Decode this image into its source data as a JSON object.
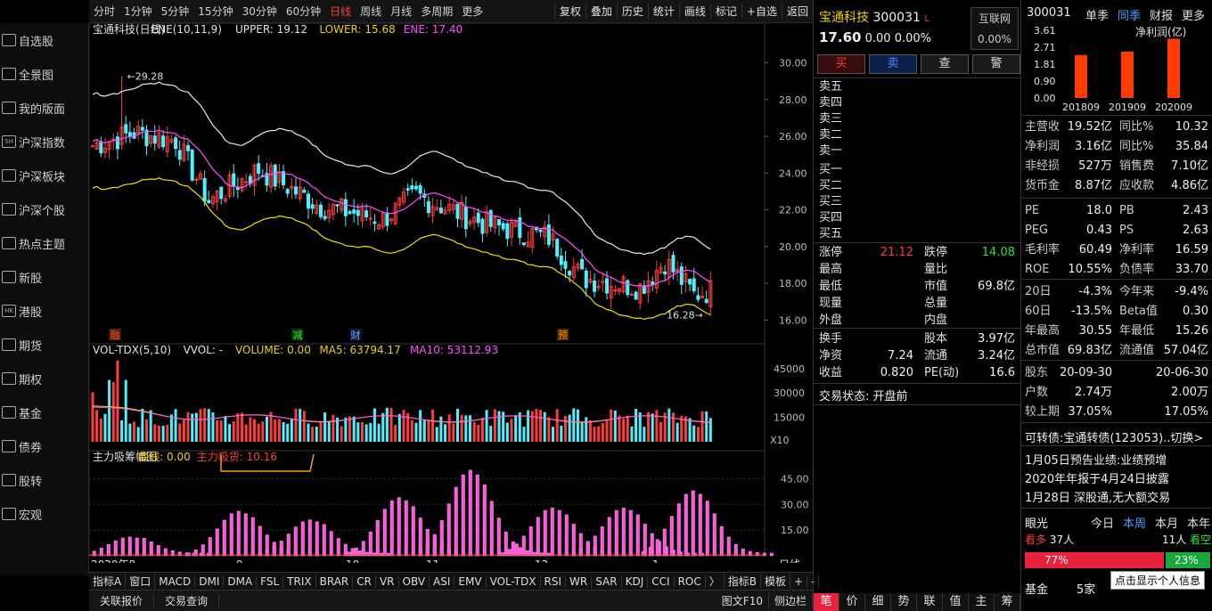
{
  "nav": [
    "自选股",
    "全景图",
    "我的版面",
    "沪深指数",
    "沪深板块",
    "沪深个股",
    "热点主题",
    "新股",
    "港股",
    "期货",
    "期权",
    "基金",
    "债券",
    "股转",
    "宏观"
  ],
  "nav_icons": [
    "star-icon",
    "panorama-icon",
    "layout-icon",
    "sh-index-icon",
    "sector-icon",
    "stock-icon",
    "hot-topic-icon",
    "new-stock-icon",
    "hk-icon",
    "futures-icon",
    "options-icon",
    "fund-icon",
    "bond-icon",
    "transfer-icon",
    "macro-icon"
  ],
  "nav_icon_text": [
    "",
    "",
    "",
    "SH",
    "",
    "",
    "",
    "",
    "HK",
    "",
    "",
    "",
    "",
    "",
    ""
  ],
  "toolbar": {
    "periods": [
      "分时",
      "1分钟",
      "5分钟",
      "15分钟",
      "30分钟",
      "60分钟",
      "日线",
      "周线",
      "月线",
      "多周期",
      "更多"
    ],
    "buttons": [
      "复权",
      "叠加",
      "历史",
      "统计",
      "画线",
      "标记",
      "+自选",
      "返回"
    ]
  },
  "chart": {
    "title": "宝通科技(日线)",
    "indicator": "ENE(10,11,9)",
    "upper": "UPPER: 19.12",
    "lower": "LOWER: 15.68",
    "ene": "ENE: 17.40",
    "price_ticks": [
      "30.00",
      "28.00",
      "26.00",
      "24.00",
      "22.00",
      "20.00",
      "18.00",
      "16.00"
    ],
    "high_label": "29.28",
    "low_label": "16.28",
    "markers": [
      "融",
      "减",
      "财",
      "预"
    ],
    "vol_legend": {
      "name": "VOL-TDX(5,10)",
      "vvol": "VVOL: -",
      "volume": "VOLUME: 0.00",
      "ma5": "MA5: 63794.17",
      "ma10": "MA10: 53112.93"
    },
    "vol_ticks": [
      "45000",
      "30000",
      "15000"
    ],
    "vol_unit": "X10",
    "chip_legend": {
      "name": "主力吸筹幅图",
      "base": "底线: 0.00",
      "chip": "主力吸货: 10.16"
    },
    "chip_ticks": [
      "45.00",
      "30.00",
      "15.00"
    ],
    "months": [
      "2020年8",
      "9",
      "10",
      "11",
      "12",
      "1"
    ],
    "period_btn": "日线"
  },
  "chart_data": {
    "type": "line",
    "y_price_range": [
      15.0,
      31.0
    ],
    "series": [
      {
        "name": "UPPER",
        "end_value": 19.12
      },
      {
        "name": "LOWER",
        "end_value": 15.68
      },
      {
        "name": "ENE",
        "end_value": 17.4
      }
    ],
    "last_close": 17.6,
    "high": 29.28,
    "low": 16.28
  },
  "bottom_tabs": [
    "指标A",
    "窗口",
    "MACD",
    "DMI",
    "DMA",
    "FSL",
    "TRIX",
    "BRAR",
    "CR",
    "VR",
    "OBV",
    "ASI",
    "EMV",
    "VOL-TDX",
    "RSI",
    "WR",
    "SAR",
    "KDJ",
    "CCI",
    "ROC",
    "〉",
    "指标B",
    "模板",
    "+",
    "-"
  ],
  "status": {
    "left": [
      "关联报价",
      "交易查询"
    ],
    "right": [
      "图文F10",
      "侧边栏"
    ]
  },
  "quote": {
    "name": "宝通科技",
    "code": "300031",
    "flag": "L",
    "source": "互联网",
    "price": "17.60",
    "chg": "0.00",
    "pct": "0.00%",
    "pct2": "0.00%",
    "actions": [
      "买",
      "卖",
      "查",
      "警"
    ],
    "sells": [
      "卖五",
      "卖四",
      "卖三",
      "卖二",
      "卖一"
    ],
    "buys": [
      "买一",
      "买二",
      "买三",
      "买四",
      "买五"
    ],
    "stats": [
      [
        "涨停",
        "21.12",
        "跌停",
        "14.08"
      ],
      [
        "最高",
        "",
        "量比",
        ""
      ],
      [
        "最低",
        "",
        "市值",
        "69.8亿"
      ],
      [
        "现量",
        "",
        "总量",
        ""
      ],
      [
        "外盘",
        "",
        "内盘",
        ""
      ]
    ],
    "stats2": [
      [
        "换手",
        "",
        "股本",
        "3.97亿"
      ],
      [
        "净资",
        "7.24",
        "流通",
        "3.24亿"
      ],
      [
        "收益",
        "0.820",
        "PE(动)",
        "16.6"
      ]
    ],
    "state": "交易状态: 开盘前",
    "bottom_tabs": [
      "笔",
      "价",
      "细",
      "势",
      "联",
      "值",
      "主",
      "筹"
    ]
  },
  "fin": {
    "code": "300031",
    "tabs": [
      "单季",
      "同季",
      "财报",
      "更多"
    ],
    "chart_label": "净利润(亿)",
    "yticks": [
      "3.61",
      "2.71",
      "1.81",
      "0.90",
      "0.00"
    ],
    "years": [
      "201809",
      "201909",
      "202009"
    ],
    "values": [
      2.29,
      2.47,
      3.16
    ],
    "rows": [
      [
        "主营收",
        "19.52亿",
        "同比%",
        "10.32"
      ],
      [
        "净利润",
        "3.16亿",
        "同比%",
        "35.84"
      ],
      [
        "非经损",
        "527万",
        "销售费",
        "7.10亿"
      ],
      [
        "货币金",
        "8.87亿",
        "应收款",
        "4.86亿"
      ]
    ],
    "ratios": [
      [
        "PE",
        "18.0",
        "PB",
        "2.43"
      ],
      [
        "PEG",
        "0.43",
        "PS",
        "2.63"
      ],
      [
        "毛利率",
        "60.49",
        "净利率",
        "16.59"
      ],
      [
        "ROE",
        "10.55%",
        "负债率",
        "33.70"
      ]
    ],
    "perf": [
      [
        "20日",
        "-4.3%",
        "今年来",
        "-9.4%"
      ],
      [
        "60日",
        "-13.5%",
        "Beta值",
        "0.30"
      ],
      [
        "年最高",
        "30.55",
        "年最低",
        "15.26"
      ],
      [
        "总市值",
        "69.83亿",
        "流通值",
        "57.04亿"
      ]
    ],
    "holders": [
      [
        "股东",
        "20-09-30",
        "20-06-30"
      ],
      [
        "户数",
        "2.74万",
        "2.00万"
      ],
      [
        "较上期",
        "37.05%",
        "17.05%"
      ]
    ],
    "convert": "可转债:宝通转债(123053)",
    "switch": "..切换>",
    "news": [
      "1月05日预告业绩:业绩预增",
      "2020年年报于4月24日披露",
      "1月28日 深股通,无大额交易"
    ],
    "vision": {
      "label": "眼光",
      "tabs": [
        "今日",
        "本周",
        "本月",
        "本年"
      ],
      "bull": "看多",
      "bull_n": "37人",
      "bear": "看空",
      "bear_n": "11人",
      "bull_pct": "77%",
      "bear_pct": "23%",
      "tip": "点击显示个人信息"
    },
    "fund": {
      "label": "基金",
      "n": "5家"
    }
  }
}
